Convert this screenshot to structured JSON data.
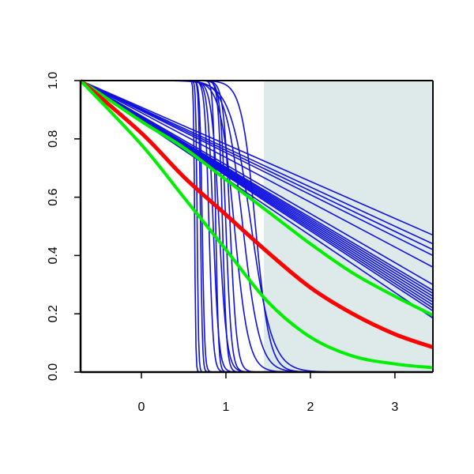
{
  "chart_data": {
    "type": "line",
    "title": "",
    "xlabel": "",
    "ylabel": "",
    "xlim": [
      -0.72,
      3.45
    ],
    "ylim": [
      0.0,
      1.0
    ],
    "x_ticks": [
      0,
      1,
      2,
      3
    ],
    "y_ticks": [
      0.0,
      0.2,
      0.4,
      0.6,
      0.8,
      1.0
    ],
    "x_tick_labels": [
      "0",
      "1",
      "2",
      "3"
    ],
    "y_tick_labels": [
      "0.0",
      "0.2",
      "0.4",
      "0.6",
      "0.8",
      "1.0"
    ],
    "grid": false,
    "shaded_region": {
      "x_from": 1.45,
      "x_to": 3.45,
      "color": "#deeaea"
    },
    "colors": {
      "blue": "#1010e0",
      "red": "#ff0000",
      "green": "#00ee00",
      "axis": "#000000"
    },
    "series": [
      {
        "color": "blue",
        "kind": "step",
        "center": 0.63,
        "steepness": 150
      },
      {
        "color": "blue",
        "kind": "step",
        "center": 0.66,
        "steepness": 120
      },
      {
        "color": "blue",
        "kind": "step",
        "center": 0.7,
        "steepness": 90
      },
      {
        "color": "blue",
        "kind": "step",
        "center": 0.72,
        "steepness": 70
      },
      {
        "color": "blue",
        "kind": "step",
        "center": 0.8,
        "steepness": 40
      },
      {
        "color": "blue",
        "kind": "step",
        "center": 0.85,
        "steepness": 30
      },
      {
        "color": "blue",
        "kind": "step",
        "center": 0.88,
        "steepness": 60
      },
      {
        "color": "blue",
        "kind": "step",
        "center": 0.92,
        "steepness": 22
      },
      {
        "color": "blue",
        "kind": "step",
        "center": 0.96,
        "steepness": 40
      },
      {
        "color": "blue",
        "kind": "step",
        "center": 1.0,
        "steepness": 30
      },
      {
        "color": "blue",
        "kind": "step",
        "center": 1.05,
        "steepness": 25
      },
      {
        "color": "blue",
        "kind": "step",
        "center": 1.1,
        "steepness": 12
      },
      {
        "color": "blue",
        "kind": "step",
        "center": 1.2,
        "steepness": 10
      },
      {
        "color": "blue",
        "kind": "step",
        "center": 1.3,
        "steepness": 8
      },
      {
        "color": "blue",
        "kind": "step",
        "center": 1.35,
        "steepness": 12
      },
      {
        "color": "blue",
        "kind": "curve",
        "x": [
          -0.72,
          3.45
        ],
        "y": [
          1.0,
          0.47
        ]
      },
      {
        "color": "blue",
        "kind": "curve",
        "x": [
          -0.72,
          3.45
        ],
        "y": [
          1.0,
          0.44
        ]
      },
      {
        "color": "blue",
        "kind": "curve",
        "x": [
          -0.72,
          3.45
        ],
        "y": [
          1.0,
          0.42
        ]
      },
      {
        "color": "blue",
        "kind": "curve",
        "x": [
          -0.72,
          3.45
        ],
        "y": [
          1.0,
          0.4
        ]
      },
      {
        "color": "blue",
        "kind": "curve",
        "x": [
          -0.72,
          3.45
        ],
        "y": [
          1.0,
          0.36
        ]
      },
      {
        "color": "blue",
        "kind": "curve",
        "x": [
          -0.72,
          3.45
        ],
        "y": [
          1.0,
          0.3
        ]
      },
      {
        "color": "blue",
        "kind": "curve",
        "x": [
          -0.72,
          3.45
        ],
        "y": [
          1.0,
          0.28
        ]
      },
      {
        "color": "blue",
        "kind": "curve",
        "x": [
          -0.72,
          3.45
        ],
        "y": [
          1.0,
          0.27
        ]
      },
      {
        "color": "blue",
        "kind": "curve",
        "x": [
          -0.72,
          3.45
        ],
        "y": [
          1.0,
          0.26
        ]
      },
      {
        "color": "blue",
        "kind": "curve",
        "x": [
          -0.72,
          3.45
        ],
        "y": [
          1.0,
          0.25
        ]
      },
      {
        "color": "blue",
        "kind": "curve",
        "x": [
          -0.72,
          3.45
        ],
        "y": [
          1.0,
          0.24
        ]
      },
      {
        "color": "blue",
        "kind": "curve",
        "x": [
          -0.72,
          3.45
        ],
        "y": [
          1.0,
          0.23
        ]
      },
      {
        "color": "blue",
        "kind": "curve",
        "x": [
          -0.72,
          3.45
        ],
        "y": [
          1.0,
          0.22
        ]
      },
      {
        "color": "blue",
        "kind": "curve",
        "x": [
          -0.72,
          3.45
        ],
        "y": [
          1.0,
          0.21
        ]
      },
      {
        "color": "blue",
        "kind": "curve",
        "x": [
          -0.72,
          3.45
        ],
        "y": [
          1.0,
          0.185
        ]
      },
      {
        "color": "green",
        "kind": "curve",
        "width": 4,
        "x": [
          -0.72,
          0.0,
          0.5,
          1.0,
          1.5,
          2.0,
          2.5,
          3.0,
          3.45
        ],
        "y": [
          1.0,
          0.86,
          0.77,
          0.66,
          0.55,
          0.44,
          0.34,
          0.26,
          0.195
        ]
      },
      {
        "color": "red",
        "kind": "curve",
        "width": 5,
        "x": [
          -0.72,
          0.0,
          0.5,
          1.0,
          1.5,
          2.0,
          2.5,
          3.0,
          3.45
        ],
        "y": [
          1.0,
          0.82,
          0.67,
          0.54,
          0.41,
          0.29,
          0.2,
          0.13,
          0.085
        ]
      },
      {
        "color": "green",
        "kind": "curve",
        "width": 4,
        "x": [
          -0.72,
          0.0,
          0.5,
          1.0,
          1.5,
          2.0,
          2.5,
          3.0,
          3.45
        ],
        "y": [
          1.0,
          0.78,
          0.6,
          0.42,
          0.24,
          0.12,
          0.055,
          0.028,
          0.015
        ]
      }
    ]
  }
}
